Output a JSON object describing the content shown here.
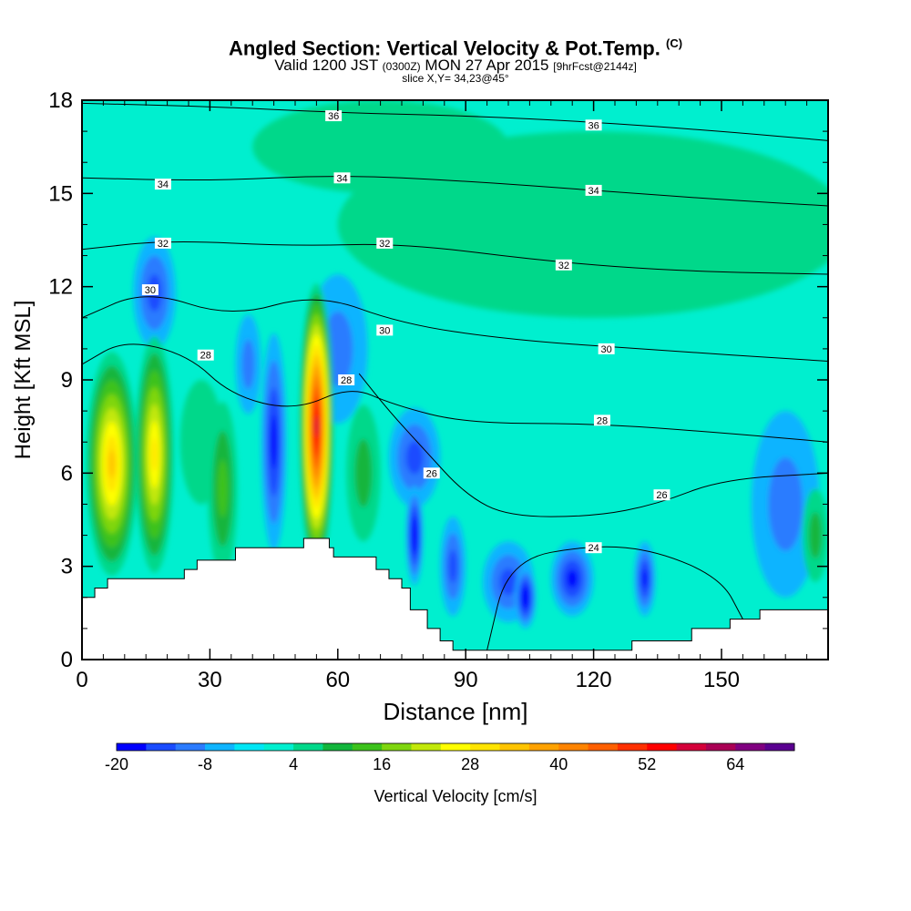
{
  "title": {
    "main": "Angled Section: Vertical Velocity & Pot.Temp.",
    "main_suffix": "(C)",
    "valid_a": "Valid 1200 JST",
    "valid_b": "(0300Z)",
    "valid_c": "MON 27 Apr 2015",
    "valid_d": "[9hrFcst@2144z]",
    "slice": "slice X,Y= 34,23@45°"
  },
  "chart_data": {
    "type": "heatmap",
    "xlabel": "Distance [nm]",
    "ylabel": "Height [Kft MSL]",
    "xlim": [
      0,
      175
    ],
    "ylim": [
      0,
      18
    ],
    "x_ticks": [
      0,
      30,
      60,
      90,
      120,
      150
    ],
    "y_ticks": [
      0,
      3,
      6,
      9,
      12,
      15,
      18
    ],
    "background_level_cms": 0,
    "colorbar": {
      "label": "Vertical Velocity [cm/s]",
      "tick_values": [
        -20,
        -8,
        4,
        16,
        28,
        40,
        52,
        64
      ],
      "boundaries": [
        -20,
        -16,
        -12,
        -8,
        -4,
        0,
        4,
        8,
        12,
        16,
        20,
        24,
        28,
        32,
        36,
        40,
        44,
        48,
        52,
        56,
        60,
        64,
        68,
        72
      ],
      "colors": [
        "#0000ff",
        "#1a4cff",
        "#2b7bff",
        "#0fb4ff",
        "#00e6f5",
        "#00efcf",
        "#00d88a",
        "#12b53c",
        "#3cc21c",
        "#7fd60f",
        "#c2e80a",
        "#ffff00",
        "#ffe400",
        "#ffc400",
        "#ffa200",
        "#ff8400",
        "#ff6000",
        "#ff3000",
        "#ff0000",
        "#d4003a",
        "#aa0055",
        "#800080",
        "#5a0090"
      ]
    },
    "terrain": [
      [
        0,
        2
      ],
      [
        3,
        2
      ],
      [
        3,
        2.3
      ],
      [
        6,
        2.3
      ],
      [
        6,
        2.6
      ],
      [
        24,
        2.6
      ],
      [
        24,
        2.9
      ],
      [
        27,
        2.9
      ],
      [
        27,
        3.2
      ],
      [
        36,
        3.2
      ],
      [
        36,
        3.6
      ],
      [
        52,
        3.6
      ],
      [
        52,
        3.9
      ],
      [
        58,
        3.9
      ],
      [
        58,
        3.6
      ],
      [
        59,
        3.6
      ],
      [
        59,
        3.3
      ],
      [
        69,
        3.3
      ],
      [
        69,
        2.9
      ],
      [
        72,
        2.9
      ],
      [
        72,
        2.6
      ],
      [
        75,
        2.6
      ],
      [
        75,
        2.3
      ],
      [
        77,
        2.3
      ],
      [
        77,
        1.6
      ],
      [
        81,
        1.6
      ],
      [
        81,
        1.0
      ],
      [
        84,
        1.0
      ],
      [
        84,
        0.6
      ],
      [
        87,
        0.6
      ],
      [
        87,
        0.3
      ],
      [
        129,
        0.3
      ],
      [
        129,
        0.6
      ],
      [
        143,
        0.6
      ],
      [
        143,
        1.0
      ],
      [
        152,
        1.0
      ],
      [
        152,
        1.3
      ],
      [
        159,
        1.3
      ],
      [
        159,
        1.6
      ],
      [
        175,
        1.6
      ]
    ],
    "velocity_cells": [
      {
        "x": 7,
        "y": 6.3,
        "rx": 6,
        "ry": 3.6,
        "value": 32
      },
      {
        "x": 17,
        "y": 6.6,
        "rx": 4.5,
        "ry": 3.8,
        "value": 26
      },
      {
        "x": 33,
        "y": 5.5,
        "rx": 3.5,
        "ry": 2.8,
        "value": 10
      },
      {
        "x": 45,
        "y": 7,
        "rx": 3,
        "ry": 3.5,
        "value": -16
      },
      {
        "x": 39,
        "y": 9.5,
        "rx": 3,
        "ry": 1.6,
        "value": -6
      },
      {
        "x": 55,
        "y": 7.5,
        "rx": 4,
        "ry": 4.6,
        "value": 54
      },
      {
        "x": 60,
        "y": 10,
        "rx": 7,
        "ry": 2.4,
        "value": -8
      },
      {
        "x": 17,
        "y": 11.8,
        "rx": 5,
        "ry": 1.8,
        "value": -12
      },
      {
        "x": 28,
        "y": 7,
        "rx": 5,
        "ry": 2,
        "value": 2
      },
      {
        "x": 66,
        "y": 6,
        "rx": 4,
        "ry": 2.2,
        "value": 6
      },
      {
        "x": 78,
        "y": 6.5,
        "rx": 6,
        "ry": 1.6,
        "value": -10
      },
      {
        "x": 78,
        "y": 4,
        "rx": 2,
        "ry": 1.6,
        "value": -20
      },
      {
        "x": 87,
        "y": 3,
        "rx": 3,
        "ry": 1.6,
        "value": -12
      },
      {
        "x": 100,
        "y": 2.5,
        "rx": 6,
        "ry": 1.3,
        "value": -12
      },
      {
        "x": 104,
        "y": 2,
        "rx": 2.5,
        "ry": 1,
        "value": -20
      },
      {
        "x": 115,
        "y": 2.6,
        "rx": 5,
        "ry": 1.2,
        "value": -16
      },
      {
        "x": 132,
        "y": 2.6,
        "rx": 2.5,
        "ry": 1.2,
        "value": -14
      },
      {
        "x": 165,
        "y": 5,
        "rx": 8,
        "ry": 3,
        "value": -6
      },
      {
        "x": 172,
        "y": 4,
        "rx": 3,
        "ry": 1.5,
        "value": 8
      },
      {
        "x": 120,
        "y": 14,
        "rx": 60,
        "ry": 3,
        "value": 4
      },
      {
        "x": 70,
        "y": 16.5,
        "rx": 30,
        "ry": 1.5,
        "value": 4
      }
    ],
    "theta_isolines": [
      {
        "label": "36",
        "points": [
          [
            0,
            17.9
          ],
          [
            30,
            17.8
          ],
          [
            60,
            17.6
          ],
          [
            90,
            17.5
          ],
          [
            120,
            17.3
          ],
          [
            150,
            17.0
          ],
          [
            175,
            16.7
          ]
        ],
        "label_at": [
          [
            59,
            17.5
          ],
          [
            120,
            17.2
          ]
        ]
      },
      {
        "label": "34",
        "points": [
          [
            0,
            15.5
          ],
          [
            30,
            15.4
          ],
          [
            60,
            15.6
          ],
          [
            90,
            15.4
          ],
          [
            120,
            15.1
          ],
          [
            150,
            14.8
          ],
          [
            175,
            14.6
          ]
        ],
        "label_at": [
          [
            19,
            15.3
          ],
          [
            61,
            15.5
          ],
          [
            120,
            15.1
          ]
        ]
      },
      {
        "label": "32",
        "points": [
          [
            0,
            13.2
          ],
          [
            20,
            13.5
          ],
          [
            50,
            13.3
          ],
          [
            75,
            13.4
          ],
          [
            110,
            12.8
          ],
          [
            140,
            12.5
          ],
          [
            175,
            12.4
          ]
        ],
        "label_at": [
          [
            19,
            13.4
          ],
          [
            71,
            13.4
          ],
          [
            113,
            12.7
          ]
        ]
      },
      {
        "label": "30",
        "points": [
          [
            0,
            11.0
          ],
          [
            15,
            11.9
          ],
          [
            35,
            11.0
          ],
          [
            55,
            11.8
          ],
          [
            75,
            10.8
          ],
          [
            100,
            10.3
          ],
          [
            130,
            10.0
          ],
          [
            175,
            9.6
          ]
        ],
        "label_at": [
          [
            16,
            11.9
          ],
          [
            71,
            10.6
          ],
          [
            123,
            10.0
          ]
        ]
      },
      {
        "label": "28",
        "points": [
          [
            0,
            9.5
          ],
          [
            10,
            10.3
          ],
          [
            25,
            9.8
          ],
          [
            35,
            8.5
          ],
          [
            50,
            8.0
          ],
          [
            63,
            8.8
          ],
          [
            73,
            8.2
          ],
          [
            90,
            7.6
          ],
          [
            120,
            7.6
          ],
          [
            150,
            7.3
          ],
          [
            175,
            7.0
          ]
        ],
        "label_at": [
          [
            29,
            9.8
          ],
          [
            62,
            9.0
          ],
          [
            122,
            7.7
          ]
        ]
      },
      {
        "label": "26",
        "points": [
          [
            65,
            9.2
          ],
          [
            72,
            8.0
          ],
          [
            80,
            6.8
          ],
          [
            90,
            5.3
          ],
          [
            100,
            4.6
          ],
          [
            120,
            4.6
          ],
          [
            135,
            5.0
          ],
          [
            150,
            5.8
          ],
          [
            175,
            6.0
          ]
        ],
        "label_at": [
          [
            82,
            6.0
          ],
          [
            136,
            5.3
          ]
        ]
      },
      {
        "label": "24",
        "points": [
          [
            95,
            0.3
          ],
          [
            100,
            3.2
          ],
          [
            120,
            3.7
          ],
          [
            135,
            3.5
          ],
          [
            150,
            2.6
          ],
          [
            155,
            1.3
          ]
        ],
        "label_at": [
          [
            120,
            3.6
          ]
        ]
      }
    ]
  },
  "colorbar_tick_labels": [
    "-20",
    "-8",
    "4",
    "16",
    "28",
    "40",
    "52",
    "64"
  ],
  "x_tick_labels": [
    "0",
    "30",
    "60",
    "90",
    "120",
    "150"
  ],
  "y_tick_labels": [
    "0",
    "3",
    "6",
    "9",
    "12",
    "15",
    "18"
  ]
}
